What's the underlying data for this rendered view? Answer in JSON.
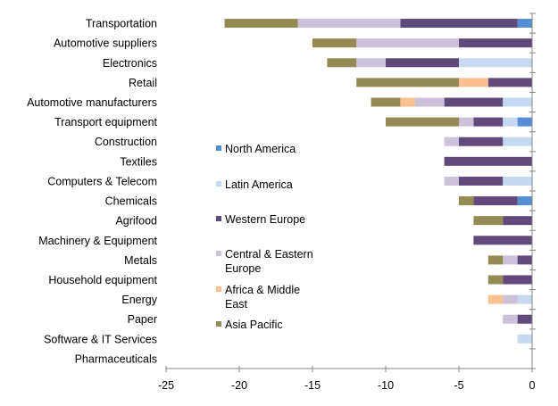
{
  "chart_data": {
    "type": "bar",
    "orientation": "horizontal",
    "stacked": true,
    "categories": [
      "Transportation",
      "Automotive suppliers",
      "Electronics",
      "Retail",
      "Automotive manufacturers",
      "Transport equipment",
      "Construction",
      "Textiles",
      "Computers & Telecom",
      "Chemicals",
      "Agrifood",
      "Machinery & Equipment",
      "Metals",
      "Household equipment",
      "Energy",
      "Paper",
      "Software & IT Services",
      "Pharmaceuticals"
    ],
    "series": [
      {
        "name": "North America",
        "color": "#558ED5",
        "values": [
          -1,
          0,
          0,
          0,
          0,
          -1,
          0,
          0,
          0,
          -1,
          0,
          0,
          0,
          0,
          0,
          0,
          0,
          0
        ]
      },
      {
        "name": "Latin America",
        "color": "#C6D9F1",
        "values": [
          0,
          0,
          -5,
          0,
          -2,
          -1,
          -2,
          0,
          -2,
          0,
          0,
          0,
          0,
          0,
          -1,
          0,
          -1,
          0
        ]
      },
      {
        "name": "Western Europe",
        "color": "#604A7B",
        "values": [
          -8,
          -5,
          -5,
          -3,
          -4,
          -2,
          -3,
          -6,
          -3,
          -3,
          -2,
          -4,
          -1,
          -2,
          0,
          -1,
          0,
          0
        ]
      },
      {
        "name": "Central & Eastern Europe",
        "color": "#CCC1DA",
        "values": [
          -7,
          -7,
          -2,
          0,
          -2,
          -1,
          -1,
          0,
          -1,
          0,
          0,
          0,
          -1,
          0,
          -1,
          -1,
          0,
          0
        ]
      },
      {
        "name": "Africa & Middle East",
        "color": "#FAC090",
        "values": [
          0,
          0,
          0,
          -2,
          -1,
          0,
          0,
          0,
          0,
          0,
          0,
          0,
          0,
          0,
          -1,
          0,
          0,
          0
        ]
      },
      {
        "name": "Asia Pacific",
        "color": "#948A54",
        "values": [
          -5,
          -3,
          -2,
          -7,
          -2,
          -5,
          0,
          0,
          0,
          -1,
          -2,
          0,
          -1,
          -1,
          0,
          0,
          0,
          0
        ]
      }
    ],
    "xlim": [
      -25,
      0
    ],
    "xticks": [
      "-25",
      "-20",
      "-15",
      "-10",
      "-5",
      "0"
    ],
    "grid": false,
    "legend": {
      "placement": "center-left",
      "lines": [
        [
          "North America"
        ],
        [
          "Latin America"
        ],
        [
          "Western Europe"
        ],
        [
          "Central & Eastern",
          "Europe"
        ],
        [
          "Africa & Middle",
          "East"
        ],
        [
          "Asia Pacific"
        ]
      ]
    }
  }
}
